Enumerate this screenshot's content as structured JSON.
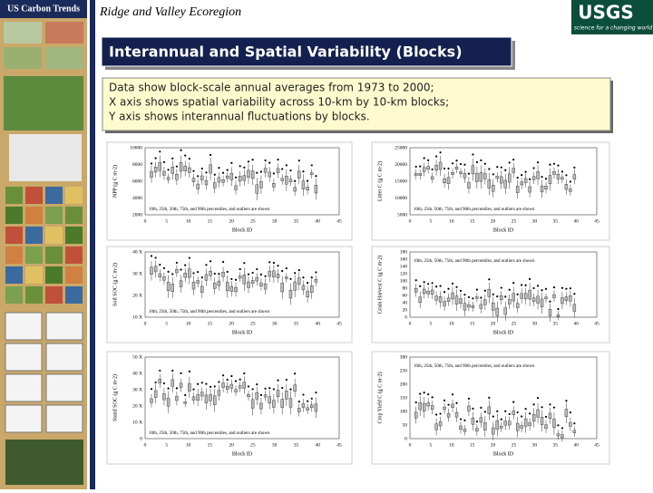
{
  "sidebar": {
    "title": "US Carbon Trends"
  },
  "header": {
    "title": "Ridge and Valley Ecoregion",
    "logo": "USGS",
    "logo_tagline": "science for a changing world"
  },
  "slide": {
    "title": "Interannual and Spatial Variability (Blocks)",
    "description": [
      "Data show block-scale annual averages from 1973 to 2000;",
      "X axis shows spatial variability across 10-km by 10-km blocks;",
      "Y axis shows interannual fluctuations by blocks."
    ]
  },
  "panels": [
    {
      "ylabel": "NPP (g C m-2)",
      "yticks": [
        "10000",
        "8000",
        "6000",
        "4000",
        "2000"
      ],
      "xticks": [
        "0",
        "5",
        "10",
        "15",
        "20",
        "25",
        "30",
        "35",
        "40",
        "45"
      ],
      "xlabel": "Block ID",
      "note": "10th, 25th, 50th, 75th, and 90th percentiles, and outliers are shown"
    },
    {
      "ylabel": "Litter C (g C m-2)",
      "yticks": [
        "25000",
        "20000",
        "15000",
        "10000",
        "5000"
      ],
      "xticks": [
        "0",
        "5",
        "10",
        "15",
        "20",
        "25",
        "30",
        "35",
        "40",
        "45"
      ],
      "xlabel": "Block ID",
      "note": "10th, 25th, 50th, 75th, and 90th percentiles, and outliers are shown"
    },
    {
      "ylabel": "Soil SOC (g C m-2)",
      "yticks": [
        "40 X",
        "30 X",
        "20 X",
        "10 X"
      ],
      "xticks": [
        "0",
        "5",
        "10",
        "15",
        "20",
        "25",
        "30",
        "35",
        "40",
        "45"
      ],
      "xlabel": "Block ID",
      "note": "10th, 25th, 50th, 75th, and 90th percentiles, and outliers are shown"
    },
    {
      "ylabel": "Grain Harvest C (g C m-2)",
      "yticks": [
        "180",
        "160",
        "140",
        "120",
        "100",
        "80",
        "60",
        "40",
        "20",
        "0"
      ],
      "xticks": [
        "0",
        "5",
        "10",
        "15",
        "20",
        "25",
        "30",
        "35",
        "40",
        "45"
      ],
      "xlabel": "Block ID",
      "note": "10th, 25th, 50th, 75th, and 90th percentiles, and outliers are shown"
    },
    {
      "ylabel": "Stand SOC (g C m-2)",
      "yticks": [
        "50 X",
        "40 X",
        "30 X",
        "20 X",
        "10 X",
        "0"
      ],
      "xticks": [
        "0",
        "5",
        "10",
        "15",
        "20",
        "25",
        "30",
        "35",
        "40",
        "45"
      ],
      "xlabel": "Block ID",
      "note": "10th, 25th, 50th, 75th, and 90th percentiles, and outliers are shown"
    },
    {
      "ylabel": "Crop Yield C (g C m-2)",
      "yticks": [
        "300",
        "250",
        "200",
        "150",
        "100",
        "50",
        "0"
      ],
      "xticks": [
        "0",
        "5",
        "10",
        "15",
        "20",
        "25",
        "30",
        "35",
        "40",
        "45"
      ],
      "xlabel": "Block ID",
      "note": "10th, 25th, 50th, 75th, and 90th percentiles, and outliers are shown"
    }
  ]
}
